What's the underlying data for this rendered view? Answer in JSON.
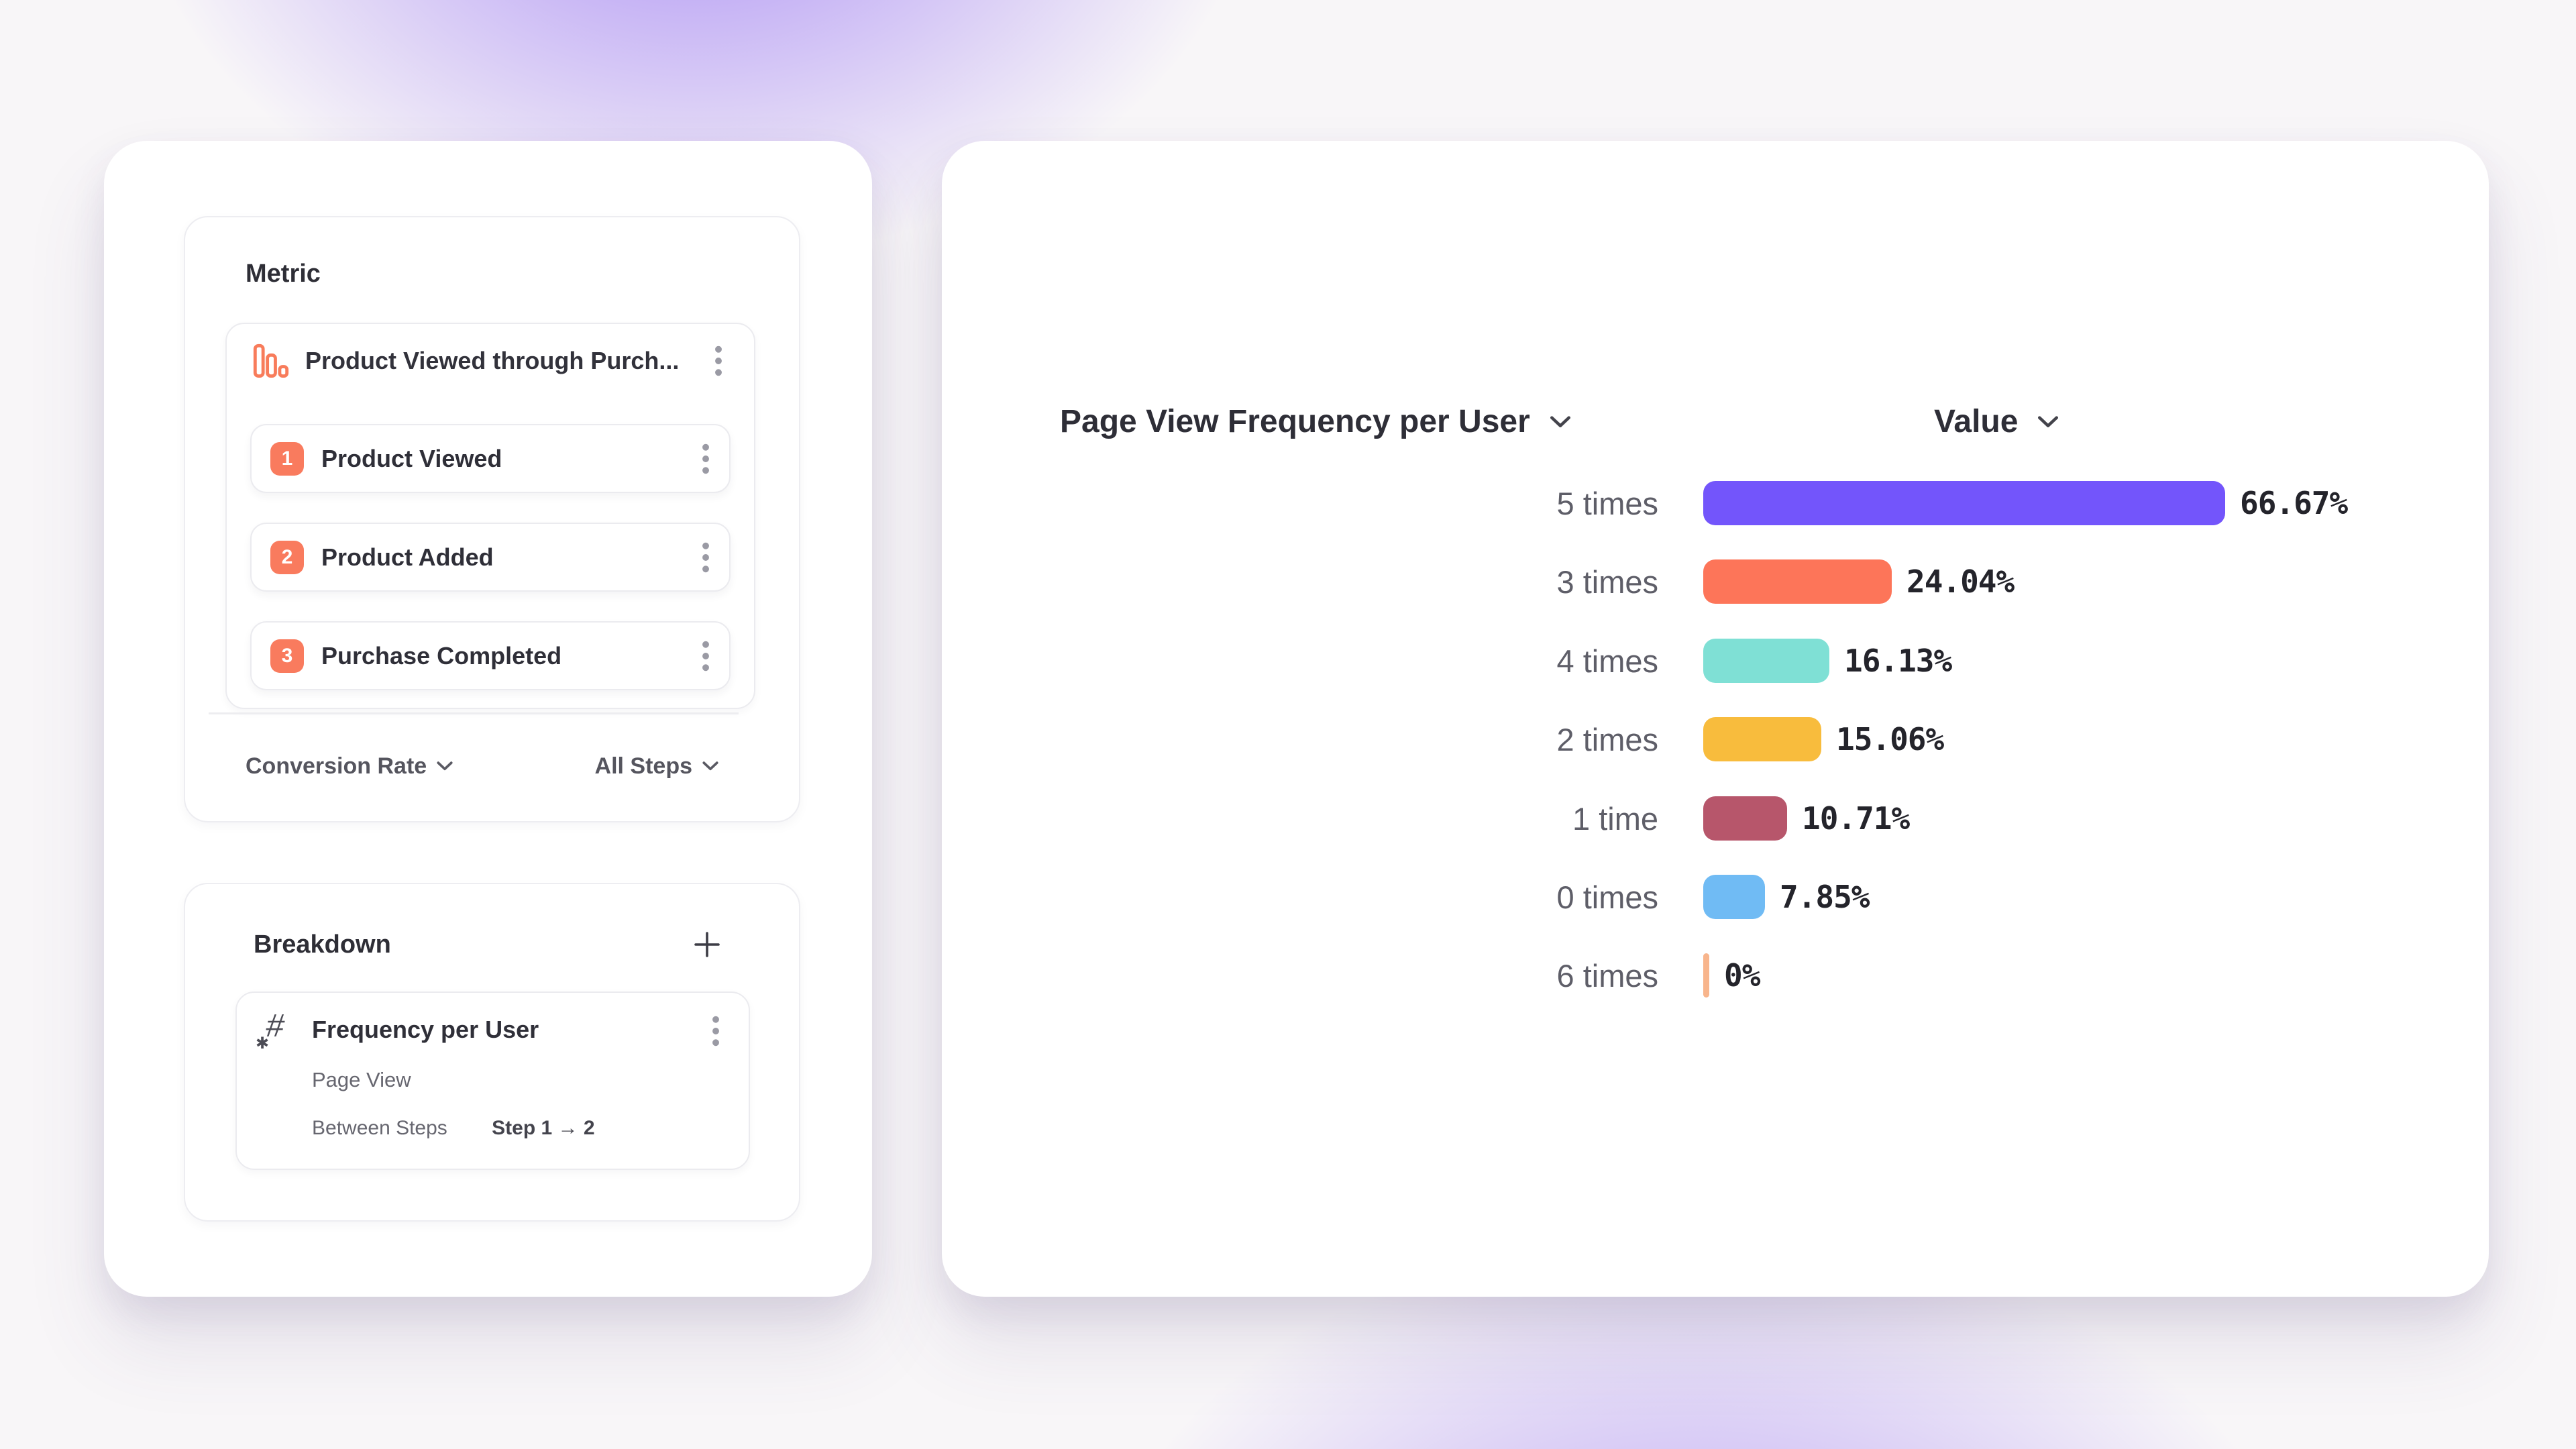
{
  "metric_panel": {
    "title": "Metric",
    "funnel": {
      "title": "Product Viewed through Purch...",
      "steps": [
        {
          "number": "1",
          "label": "Product Viewed"
        },
        {
          "number": "2",
          "label": "Product Added"
        },
        {
          "number": "3",
          "label": "Purchase Completed"
        }
      ]
    },
    "footer": {
      "measurement_label": "Conversion Rate",
      "steps_scope_label": "All Steps"
    }
  },
  "breakdown_panel": {
    "title": "Breakdown",
    "item": {
      "title": "Frequency per User",
      "event": "Page View",
      "between_steps_label": "Between Steps",
      "steps_range": "Step 1 → 2"
    }
  },
  "chart": {
    "x_dropdown_label": "Page View Frequency per User",
    "y_dropdown_label": "Value"
  },
  "chart_data": {
    "type": "bar",
    "orientation": "horizontal",
    "title": "Page View Frequency per User",
    "value_axis_label": "Value",
    "categories": [
      "5 times",
      "3 times",
      "4 times",
      "2 times",
      "1 time",
      "0 times",
      "6 times"
    ],
    "values": [
      66.67,
      24.04,
      16.13,
      15.06,
      10.71,
      7.85,
      0
    ],
    "value_labels": [
      "66.67%",
      "24.04%",
      "16.13%",
      "15.06%",
      "10.71%",
      "7.85%",
      "0%"
    ],
    "bar_colors": [
      "#7355FB",
      "#FD7559",
      "#7FE0D5",
      "#F8BC3D",
      "#B7566B",
      "#70BBF4",
      "#F8B58C"
    ],
    "units": "percent",
    "grid": false,
    "legend": "none",
    "sort": "descending by value"
  },
  "icons": {
    "funnel-bars-icon": "orange descending outlined bars",
    "kebab-menu-icon": "three vertical dots",
    "chevron-down-icon": "v",
    "plus-icon": "+",
    "numeric-property-icon": "# with small asterisk"
  },
  "colors": {
    "accent_orange": "#F97B5E",
    "background_purple": "#9D7CF2",
    "card_white": "#FFFFFF",
    "text_dark": "#2E2E37",
    "text_gray": "#5E5E68"
  }
}
